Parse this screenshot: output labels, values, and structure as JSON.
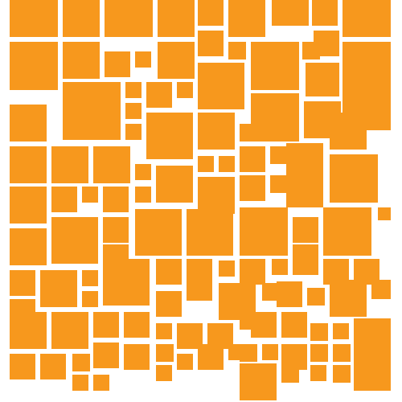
{
  "palette": {
    "tile_color": "#F7981D",
    "background": "#FFFFFF"
  }
}
